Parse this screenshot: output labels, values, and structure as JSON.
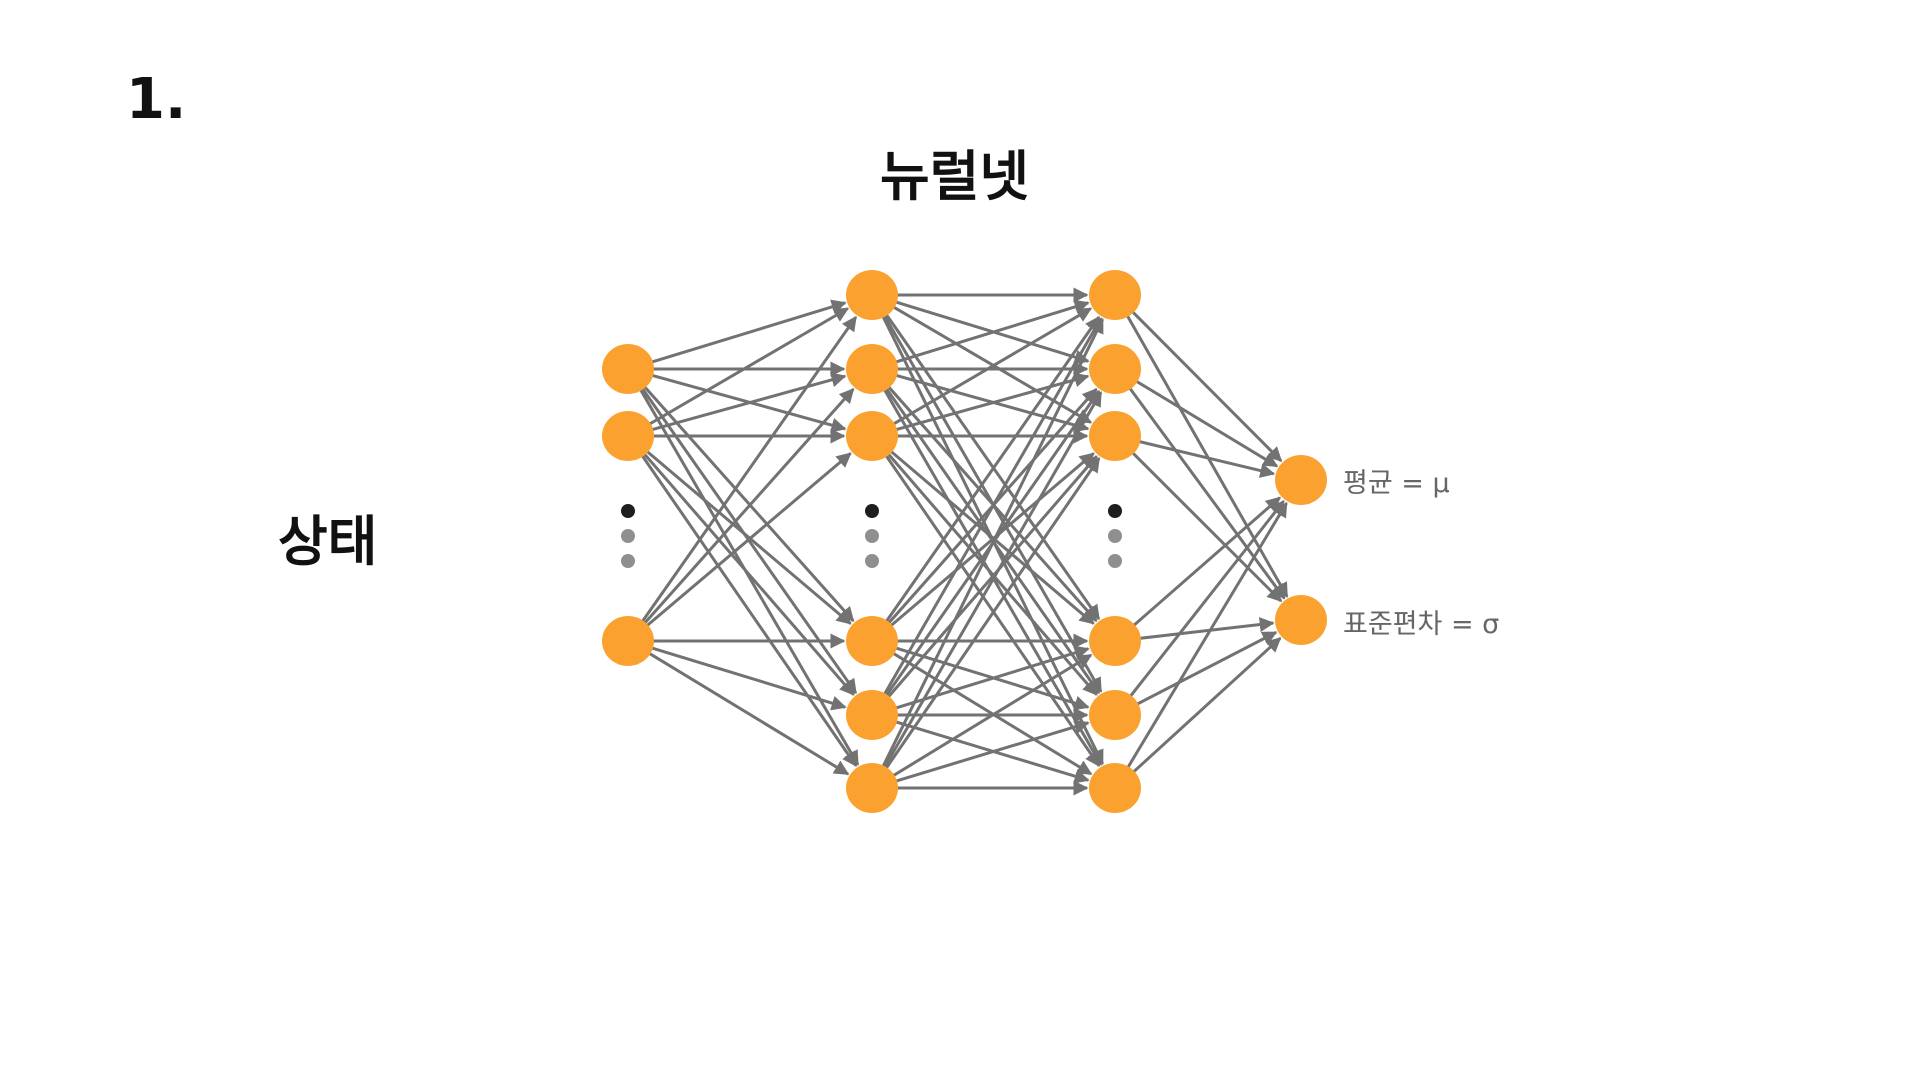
{
  "slide_number": "1.",
  "title": "뉴럴넷",
  "input_label": "상태",
  "outputs": [
    {
      "label": "평균 = μ"
    },
    {
      "label": "표준편차 = σ"
    }
  ],
  "colors": {
    "node": "#fba12f",
    "edge": "#727272",
    "ellipsis_dark": "#1e1e1e",
    "ellipsis_light": "#8f8f8f",
    "text": "#111111",
    "output_text": "#666666"
  },
  "layers": [
    {
      "name": "input",
      "visible_nodes": 3,
      "shows_ellipsis": true
    },
    {
      "name": "hidden-1",
      "visible_nodes": 6,
      "shows_ellipsis": true
    },
    {
      "name": "hidden-2",
      "visible_nodes": 6,
      "shows_ellipsis": true
    },
    {
      "name": "output",
      "visible_nodes": 2,
      "shows_ellipsis": false
    }
  ]
}
